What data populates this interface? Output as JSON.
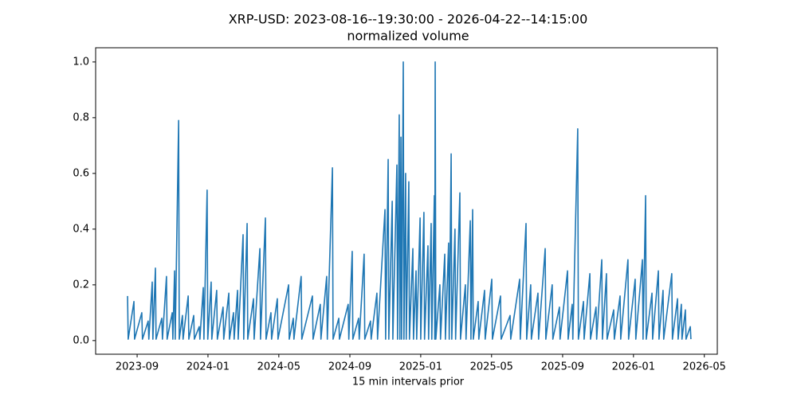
{
  "chart_data": {
    "type": "line",
    "title": "XRP-USD: 2023-08-16--19:30:00 - 2026-04-22--14:15:00",
    "subtitle": "normalized volume",
    "xlabel": "15 min intervals prior",
    "color": "#1f77b4",
    "xlim": [
      2023.472,
      2026.394
    ],
    "ylim": [
      -0.049,
      1.051
    ],
    "xticks": [
      {
        "value": 2023.667,
        "label": "2023-09"
      },
      {
        "value": 2024.0,
        "label": "2024-01"
      },
      {
        "value": 2024.333,
        "label": "2024-05"
      },
      {
        "value": 2024.667,
        "label": "2024-09"
      },
      {
        "value": 2025.0,
        "label": "2025-01"
      },
      {
        "value": 2025.333,
        "label": "2025-05"
      },
      {
        "value": 2025.667,
        "label": "2025-09"
      },
      {
        "value": 2026.0,
        "label": "2026-01"
      },
      {
        "value": 2026.333,
        "label": "2026-05"
      }
    ],
    "yticks": [
      {
        "value": 0,
        "label": "0.0"
      },
      0.2,
      0.4,
      0.6,
      0.8,
      {
        "value": 1,
        "label": "1.0"
      }
    ],
    "x": [
      2023.622,
      2023.625,
      2023.652,
      2023.655,
      2023.689,
      2023.692,
      2023.719,
      2023.722,
      2023.738,
      2023.741,
      2023.753,
      2023.756,
      2023.783,
      2023.786,
      2023.805,
      2023.808,
      2023.832,
      2023.835,
      2023.843,
      2023.846,
      2023.862,
      2023.865,
      2023.88,
      2023.883,
      2023.907,
      2023.91,
      2023.933,
      2023.936,
      2023.959,
      2023.962,
      2023.978,
      2023.981,
      2023.996,
      2023.999,
      2024.015,
      2024.018,
      2024.041,
      2024.044,
      2024.071,
      2024.074,
      2024.098,
      2024.101,
      2024.12,
      2024.123,
      2024.139,
      2024.142,
      2024.165,
      2024.168,
      2024.184,
      2024.187,
      2024.214,
      2024.217,
      2024.244,
      2024.247,
      2024.27,
      2024.273,
      2024.296,
      2024.299,
      2024.326,
      2024.329,
      2024.379,
      2024.382,
      2024.401,
      2024.404,
      2024.438,
      2024.441,
      2024.491,
      2024.494,
      2024.528,
      2024.531,
      2024.558,
      2024.561,
      2024.585,
      2024.588,
      2024.615,
      2024.618,
      2024.659,
      2024.662,
      2024.678,
      2024.681,
      2024.708,
      2024.711,
      2024.734,
      2024.737,
      2024.764,
      2024.767,
      2024.794,
      2024.797,
      2024.832,
      2024.835,
      2024.847,
      2024.85,
      2024.866,
      2024.869,
      2024.888,
      2024.891,
      2024.899,
      2024.902,
      2024.907,
      2024.91,
      2024.918,
      2024.921,
      2024.929,
      2024.932,
      2024.944,
      2024.947,
      2024.963,
      2024.966,
      2024.978,
      2024.981,
      2024.997,
      2025.0,
      2025.015,
      2025.018,
      2025.034,
      2025.037,
      2025.049,
      2025.052,
      2025.064,
      2025.066,
      2025.068,
      2025.071,
      2025.09,
      2025.093,
      2025.113,
      2025.116,
      2025.131,
      2025.134,
      2025.143,
      2025.146,
      2025.161,
      2025.164,
      2025.184,
      2025.187,
      2025.21,
      2025.213,
      2025.233,
      2025.236,
      2025.244,
      2025.247,
      2025.27,
      2025.273,
      2025.3,
      2025.303,
      2025.334,
      2025.337,
      2025.375,
      2025.378,
      2025.42,
      2025.423,
      2025.465,
      2025.468,
      2025.495,
      2025.498,
      2025.517,
      2025.52,
      2025.551,
      2025.554,
      2025.585,
      2025.588,
      2025.618,
      2025.621,
      2025.652,
      2025.655,
      2025.69,
      2025.693,
      2025.712,
      2025.715,
      2025.738,
      2025.741,
      2025.765,
      2025.768,
      2025.795,
      2025.798,
      2025.824,
      2025.827,
      2025.851,
      2025.854,
      2025.873,
      2025.876,
      2025.907,
      2025.91,
      2025.937,
      2025.94,
      2025.974,
      2025.977,
      2026.008,
      2026.011,
      2026.042,
      2026.045,
      2026.057,
      2026.06,
      2026.087,
      2026.09,
      2026.117,
      2026.12,
      2026.139,
      2026.142,
      2026.18,
      2026.183,
      2026.207,
      2026.21,
      2026.225,
      2026.228,
      2026.244,
      2026.247,
      2026.267,
      2026.27
    ],
    "values": [
      0.16,
      0.005,
      0.14,
      0.005,
      0.1,
      0.005,
      0.07,
      0.005,
      0.21,
      0.005,
      0.26,
      0.005,
      0.08,
      0.005,
      0.23,
      0.005,
      0.1,
      0.005,
      0.25,
      0.005,
      0.79,
      0.005,
      0.09,
      0.005,
      0.16,
      0.005,
      0.09,
      0.005,
      0.05,
      0.005,
      0.19,
      0.005,
      0.54,
      0.005,
      0.21,
      0.005,
      0.18,
      0.005,
      0.12,
      0.005,
      0.17,
      0.005,
      0.1,
      0.005,
      0.18,
      0.005,
      0.38,
      0.005,
      0.42,
      0.005,
      0.15,
      0.005,
      0.33,
      0.005,
      0.44,
      0.005,
      0.1,
      0.005,
      0.15,
      0.005,
      0.2,
      0.005,
      0.08,
      0.005,
      0.23,
      0.005,
      0.16,
      0.005,
      0.13,
      0.005,
      0.23,
      0.005,
      0.62,
      0.005,
      0.08,
      0.005,
      0.13,
      0.005,
      0.32,
      0.005,
      0.08,
      0.005,
      0.31,
      0.005,
      0.07,
      0.005,
      0.17,
      0.005,
      0.47,
      0.005,
      0.65,
      0.005,
      0.5,
      0.005,
      0.63,
      0.005,
      0.81,
      0.005,
      0.73,
      0.005,
      1.0,
      0.005,
      0.6,
      0.005,
      0.57,
      0.005,
      0.33,
      0.005,
      0.25,
      0.005,
      0.44,
      0.005,
      0.46,
      0.005,
      0.34,
      0.005,
      0.42,
      0.005,
      0.52,
      0.005,
      1.0,
      0.005,
      0.2,
      0.005,
      0.31,
      0.005,
      0.35,
      0.005,
      0.67,
      0.005,
      0.4,
      0.005,
      0.53,
      0.005,
      0.2,
      0.005,
      0.43,
      0.005,
      0.47,
      0.005,
      0.14,
      0.005,
      0.18,
      0.005,
      0.22,
      0.005,
      0.16,
      0.005,
      0.09,
      0.005,
      0.22,
      0.005,
      0.42,
      0.005,
      0.2,
      0.005,
      0.17,
      0.005,
      0.33,
      0.005,
      0.2,
      0.005,
      0.12,
      0.005,
      0.25,
      0.005,
      0.13,
      0.005,
      0.76,
      0.005,
      0.14,
      0.005,
      0.24,
      0.005,
      0.12,
      0.005,
      0.29,
      0.005,
      0.24,
      0.005,
      0.11,
      0.005,
      0.16,
      0.005,
      0.29,
      0.005,
      0.22,
      0.005,
      0.29,
      0.005,
      0.52,
      0.005,
      0.17,
      0.005,
      0.25,
      0.005,
      0.18,
      0.005,
      0.24,
      0.005,
      0.15,
      0.005,
      0.13,
      0.005,
      0.11,
      0.005,
      0.05,
      0.005
    ]
  }
}
